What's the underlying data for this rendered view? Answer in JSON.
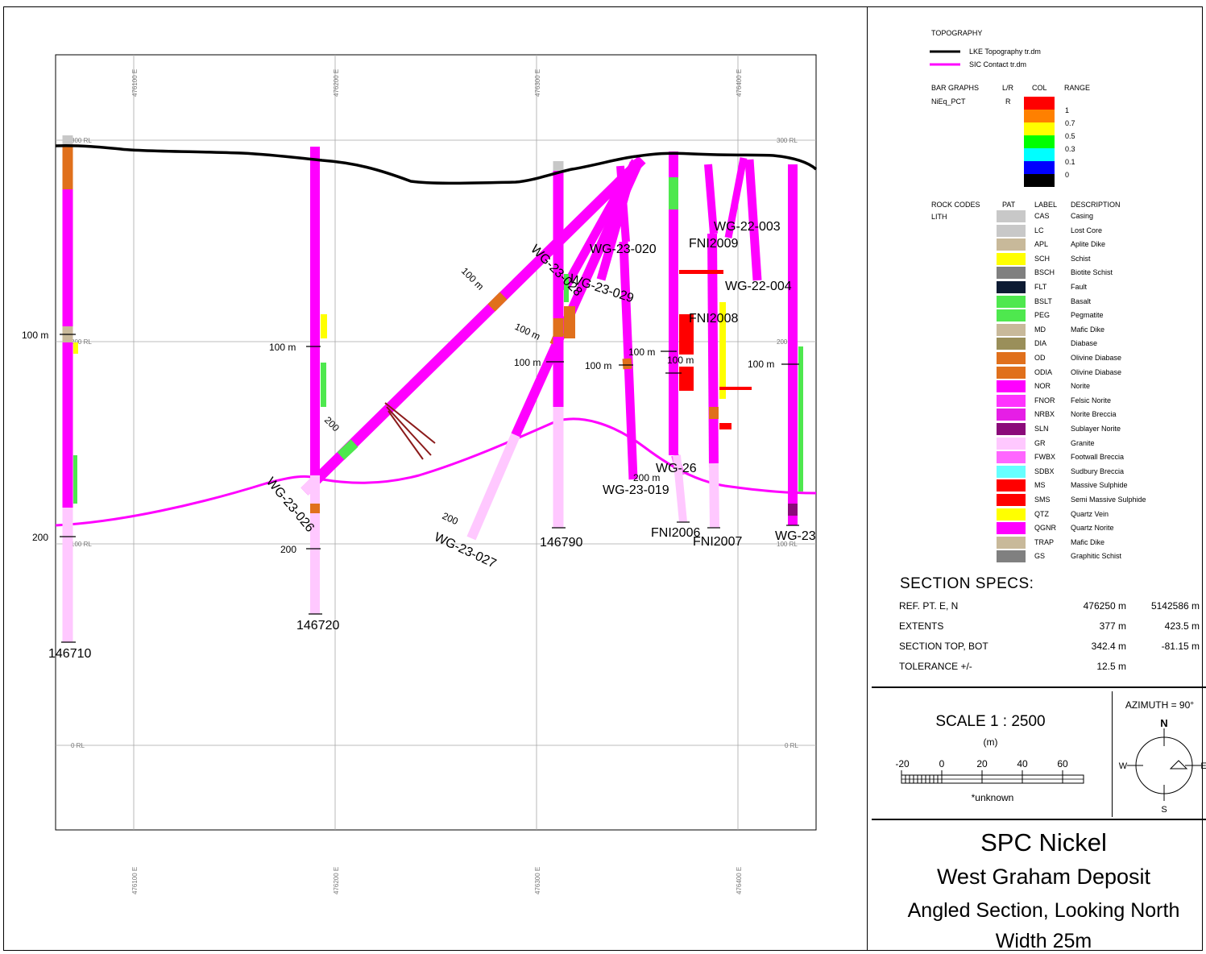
{
  "section": {
    "easting_labels": [
      "476100 E",
      "476200 E",
      "476300 E",
      "476400 E"
    ],
    "rl_labels": [
      "300 RL",
      "200 RL",
      "100 RL",
      "0 RL"
    ],
    "holes": [
      {
        "id": "146710",
        "depth_100": "100 m",
        "depth_200": "200"
      },
      {
        "id": "146720",
        "depth_100": "100 m",
        "depth_200": "200"
      },
      {
        "id": "WG-23-026",
        "depth_100": "100 m",
        "depth_200": "200"
      },
      {
        "id": "WG-23-027",
        "depth_100": "100 m",
        "depth_200": "200"
      },
      {
        "id": "WG-23-028"
      },
      {
        "id": "WG-23-020"
      },
      {
        "id": "WG-23-029"
      },
      {
        "id": "146790",
        "depth_100": "100 m"
      },
      {
        "id": "WG-23-019",
        "depth_100": "100 m",
        "depth_200": "200 m"
      },
      {
        "id": "WG-26"
      },
      {
        "id": "FNI2009"
      },
      {
        "id": "FNI2006",
        "depth_100": "100 m"
      },
      {
        "id": "FNI2008"
      },
      {
        "id": "FNI2007"
      },
      {
        "id": "WG-22-003"
      },
      {
        "id": "WG-22-004"
      },
      {
        "id": "WG-23"
      }
    ],
    "depth_marks": [
      "100 m",
      "100 m",
      "100 m",
      "100 m",
      "100 m",
      "100 m",
      "100 m",
      "200",
      "200",
      "200",
      "200 m"
    ]
  },
  "legend": {
    "topography_title": "TOPOGRAPHY",
    "topo_lines": [
      {
        "label": "LKE Topography tr.dm",
        "color": "#000000"
      },
      {
        "label": "SIC Contact tr.dm",
        "color": "#ff00ff"
      }
    ],
    "bar_graphs": {
      "headers": [
        "BAR GRAPHS",
        "L/R",
        "COL",
        "RANGE"
      ],
      "field": "NiEq_PCT",
      "side": "R",
      "colors": [
        "#ff0000",
        "#ff8000",
        "#ffff00",
        "#00ff00",
        "#00ffff",
        "#0000ff",
        "#000000"
      ],
      "ranges": [
        "1",
        "0.7",
        "0.5",
        "0.3",
        "0.1",
        "0"
      ]
    },
    "rock_headers": [
      "ROCK CODES",
      "PAT",
      "LABEL",
      "DESCRIPTION"
    ],
    "rock_sub": "LITH",
    "lith": [
      {
        "code": "CAS",
        "desc": "Casing",
        "color": "#c8c8c8"
      },
      {
        "code": "LC",
        "desc": "Lost Core",
        "color": "#c8c8c8"
      },
      {
        "code": "APL",
        "desc": "Aplite Dike",
        "color": "#c8b99a"
      },
      {
        "code": "SCH",
        "desc": "Schist",
        "color": "#ffff00"
      },
      {
        "code": "BSCH",
        "desc": "Biotite Schist",
        "color": "#808080"
      },
      {
        "code": "FLT",
        "desc": "Fault",
        "color": "#0d1b33"
      },
      {
        "code": "BSLT",
        "desc": "Basalt",
        "color": "#4ee84e"
      },
      {
        "code": "PEG",
        "desc": "Pegmatite",
        "color": "#4ee84e"
      },
      {
        "code": "MD",
        "desc": "Mafic Dike",
        "color": "#c8b99a"
      },
      {
        "code": "DIA",
        "desc": "Diabase",
        "color": "#9a8f5a"
      },
      {
        "code": "OD",
        "desc": "Olivine Diabase",
        "color": "#e0701c"
      },
      {
        "code": "ODIA",
        "desc": "Olivine Diabase",
        "color": "#e0701c"
      },
      {
        "code": "NOR",
        "desc": "Norite",
        "color": "#ff00ff"
      },
      {
        "code": "FNOR",
        "desc": "Felsic Norite",
        "color": "#ff33ff"
      },
      {
        "code": "NRBX",
        "desc": "Norite Breccia",
        "color": "#e61ee6"
      },
      {
        "code": "SLN",
        "desc": "Sublayer Norite",
        "color": "#8b0a7a"
      },
      {
        "code": "GR",
        "desc": "Granite",
        "color": "#ffc8ff"
      },
      {
        "code": "FWBX",
        "desc": "Footwall Breccia",
        "color": "#ff66ff"
      },
      {
        "code": "SDBX",
        "desc": "Sudbury Breccia",
        "color": "#66ffff"
      },
      {
        "code": "MS",
        "desc": "Massive Sulphide",
        "color": "#ff0000"
      },
      {
        "code": "SMS",
        "desc": "Semi Massive Sulphide",
        "color": "#ff0000"
      },
      {
        "code": "QTZ",
        "desc": "Quartz Vein",
        "color": "#ffff00"
      },
      {
        "code": "QGNR",
        "desc": "Quartz Norite",
        "color": "#ff00ff"
      },
      {
        "code": "TRAP",
        "desc": "Mafic Dike",
        "color": "#c8b99a"
      },
      {
        "code": "GS",
        "desc": "Graphitic Schist",
        "color": "#808080"
      }
    ]
  },
  "specs": {
    "title": "SECTION  SPECS:",
    "rows": [
      {
        "label": "REF. PT.  E, N",
        "v1": "476250 m",
        "v2": "5142586 m"
      },
      {
        "label": "EXTENTS",
        "v1": "377 m",
        "v2": "423.5 m"
      },
      {
        "label": "SECTION TOP, BOT",
        "v1": "342.4 m",
        "v2": "-81.15 m"
      },
      {
        "label": "TOLERANCE  +/-",
        "v1": "12.5 m",
        "v2": ""
      }
    ]
  },
  "scale": {
    "title": "SCALE  1 : 2500",
    "unit": "(m)",
    "ticks": [
      "-20",
      "0",
      "20",
      "40",
      "60"
    ],
    "note": "*unknown"
  },
  "azimuth": {
    "label": "AZIMUTH = 90°",
    "n": "N",
    "s": "S",
    "e": "E",
    "w": "W"
  },
  "title_block": {
    "company": "SPC Nickel",
    "deposit": "West Graham Deposit",
    "view": "Angled Section, Looking North",
    "width": "Width 25m"
  }
}
